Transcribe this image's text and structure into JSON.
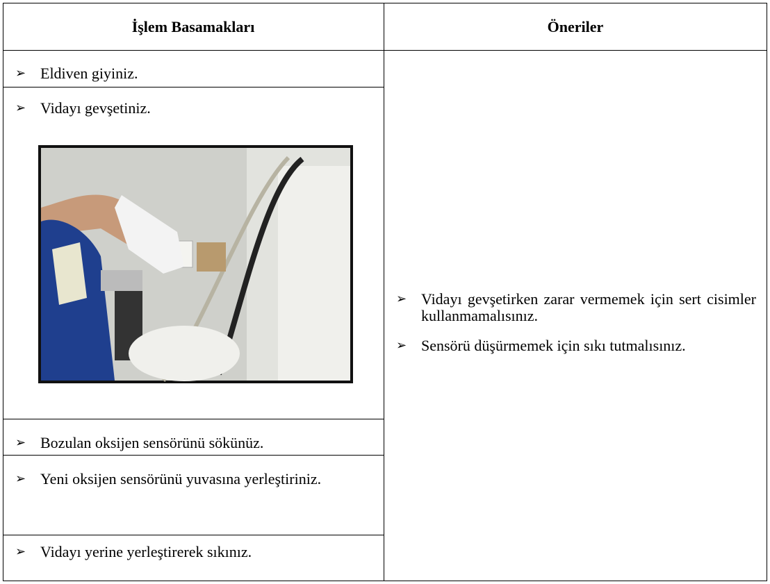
{
  "table": {
    "headers": [
      "İşlem Basamakları",
      "Öneriler"
    ],
    "steps": [
      "Eldiven giyiniz.",
      "Vidayı gevşetiniz.",
      "Bozulan oksijen sensörünü sökünüz.",
      "Yeni oksijen sensörünü yuvasına yerleştiriniz.",
      "Vidayı yerine yerleştirerek sıkınız."
    ],
    "recommendations": [
      "Vidayı gevşetirken zarar vermemek için sert cisimler kullanmamalısınız.",
      "Sensörü düşürmemek için sıkı tutmalısınız."
    ]
  }
}
